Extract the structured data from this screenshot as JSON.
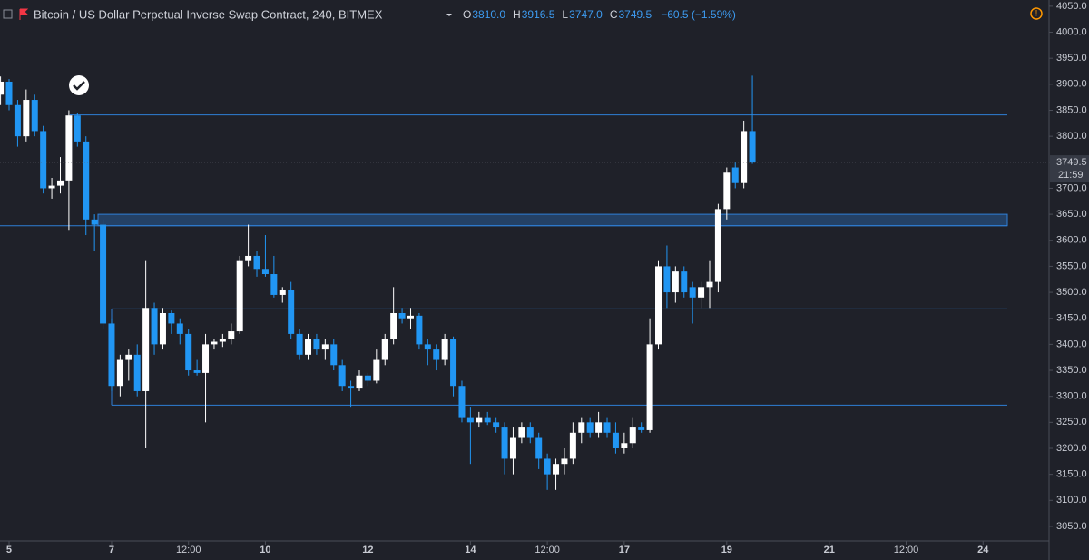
{
  "chart_data": {
    "type": "candlestick",
    "title": "Bitcoin / US Dollar Perpetual Inverse Swap Contract, 240, BITMEX",
    "ohlc": [
      {
        "label": "O",
        "value": 3810.0,
        "value_label": "3810.0"
      },
      {
        "label": "H",
        "value": 3916.5,
        "value_label": "3916.5"
      },
      {
        "label": "L",
        "value": 3747.0,
        "value_label": "3747.0"
      },
      {
        "label": "C",
        "value": 3749.5,
        "value_label": "3749.5"
      }
    ],
    "change": "−60.5 (−1.59%)",
    "countdown": "21:59",
    "up_color": "#ffffff",
    "down_color": "#2196f3",
    "level_color": "#2f7fd6",
    "x": [
      4.8333,
      5,
      5.1667,
      5.3333,
      5.5,
      5.6667,
      5.8333,
      6,
      6.1667,
      6.3333,
      6.5,
      6.6667,
      6.8333,
      7,
      7.1667,
      7.3333,
      7.5,
      7.6667,
      7.8333,
      8,
      8.1667,
      8.3333,
      8.5,
      8.6667,
      8.8333,
      9,
      9.1667,
      9.3333,
      9.5,
      9.6667,
      9.8333,
      10,
      10.1667,
      10.3333,
      10.5,
      10.6667,
      10.8333,
      11,
      11.1667,
      11.3333,
      11.5,
      11.6667,
      11.8333,
      12,
      12.1667,
      12.3333,
      12.5,
      12.6667,
      12.8333,
      13,
      13.1667,
      13.3333,
      13.5,
      13.6667,
      13.8333,
      14,
      14.1667,
      14.3333,
      14.5,
      14.6667,
      14.8333,
      15,
      15.1667,
      15.3333,
      15.5,
      15.6667,
      15.8333,
      16,
      16.1667,
      16.3333,
      16.5,
      16.6667,
      16.8333,
      17,
      17.1667,
      17.3333,
      17.5,
      17.6667,
      17.8333,
      18,
      18.1667,
      18.3333,
      18.5,
      18.6667,
      18.8333,
      19,
      19.1667,
      19.3333,
      19.5
    ],
    "open": [
      3880,
      3905,
      3860,
      3800,
      3870,
      3810,
      3700,
      3705,
      3715,
      3840,
      3790,
      3640,
      3630,
      3440,
      3320,
      3370,
      3380,
      3310,
      3470,
      3400,
      3460,
      3440,
      3420,
      3350,
      3345,
      3400,
      3405,
      3410,
      3425,
      3560,
      3570,
      3545,
      3535,
      3495,
      3505,
      3420,
      3380,
      3410,
      3390,
      3400,
      3360,
      3320,
      3315,
      3340,
      3330,
      3370,
      3410,
      3460,
      3450,
      3455,
      3400,
      3390,
      3370,
      3410,
      3320,
      3260,
      3250,
      3260,
      3250,
      3240,
      3180,
      3220,
      3240,
      3220,
      3180,
      3150,
      3170,
      3180,
      3230,
      3250,
      3230,
      3250,
      3230,
      3200,
      3210,
      3240,
      3235,
      3400,
      3550,
      3500,
      3540,
      3510,
      3490,
      3510,
      3520,
      3660,
      3740,
      3710,
      3810.0
    ],
    "high": [
      3915,
      3910,
      3870,
      3890,
      3880,
      3820,
      3720,
      3760,
      3850,
      3845,
      3800,
      3650,
      3640,
      3450,
      3380,
      3390,
      3400,
      3560,
      3480,
      3470,
      3465,
      3450,
      3430,
      3370,
      3420,
      3410,
      3420,
      3440,
      3570,
      3630,
      3580,
      3610,
      3570,
      3510,
      3520,
      3430,
      3420,
      3420,
      3410,
      3410,
      3370,
      3330,
      3350,
      3345,
      3390,
      3420,
      3510,
      3470,
      3470,
      3460,
      3410,
      3400,
      3420,
      3415,
      3330,
      3280,
      3270,
      3270,
      3260,
      3250,
      3240,
      3250,
      3250,
      3230,
      3190,
      3180,
      3200,
      3250,
      3260,
      3260,
      3270,
      3260,
      3250,
      3230,
      3260,
      3250,
      3450,
      3560,
      3590,
      3550,
      3550,
      3520,
      3520,
      3560,
      3670,
      3740,
      3750,
      3830,
      3916.5
    ],
    "low": [
      3860,
      3850,
      3780,
      3790,
      3800,
      3690,
      3680,
      3690,
      3620,
      3780,
      3610,
      3580,
      3430,
      3310,
      3300,
      3330,
      3300,
      3200,
      3380,
      3390,
      3420,
      3400,
      3340,
      3340,
      3250,
      3390,
      3395,
      3400,
      3420,
      3550,
      3530,
      3530,
      3490,
      3480,
      3410,
      3370,
      3370,
      3380,
      3370,
      3350,
      3310,
      3280,
      3310,
      3320,
      3325,
      3360,
      3400,
      3440,
      3430,
      3390,
      3360,
      3350,
      3360,
      3300,
      3250,
      3170,
      3240,
      3245,
      3230,
      3150,
      3150,
      3210,
      3210,
      3160,
      3120,
      3120,
      3150,
      3170,
      3210,
      3220,
      3220,
      3220,
      3190,
      3190,
      3200,
      3230,
      3230,
      3390,
      3470,
      3480,
      3490,
      3440,
      3470,
      3470,
      3500,
      3640,
      3700,
      3700,
      3747.0
    ],
    "close": [
      3905,
      3860,
      3800,
      3870,
      3810,
      3700,
      3705,
      3715,
      3840,
      3790,
      3640,
      3630,
      3440,
      3320,
      3370,
      3380,
      3310,
      3470,
      3400,
      3460,
      3440,
      3420,
      3350,
      3345,
      3400,
      3405,
      3410,
      3425,
      3560,
      3570,
      3545,
      3535,
      3495,
      3505,
      3420,
      3380,
      3410,
      3390,
      3400,
      3360,
      3320,
      3315,
      3340,
      3330,
      3370,
      3410,
      3460,
      3450,
      3455,
      3400,
      3390,
      3370,
      3410,
      3320,
      3260,
      3250,
      3260,
      3250,
      3240,
      3180,
      3220,
      3240,
      3220,
      3180,
      3150,
      3170,
      3180,
      3230,
      3250,
      3230,
      3250,
      3230,
      3200,
      3210,
      3240,
      3235,
      3400,
      3550,
      3500,
      3540,
      3500,
      3490,
      3510,
      3520,
      3660,
      3730,
      3710,
      3810,
      3749.5
    ],
    "horizontal_lines": [
      3841,
      3628,
      3468,
      3283
    ],
    "zone": [
      3628,
      3650
    ],
    "xlim": [
      4.823,
      25.27
    ],
    "xticks": [
      5,
      7,
      {
        "value": 8.5,
        "label": "12:00"
      },
      10,
      12,
      14,
      {
        "value": 15.5,
        "label": "12:00"
      },
      17,
      19,
      21,
      {
        "value": 22.5,
        "label": "12:00"
      },
      24
    ],
    "ylim": [
      3022,
      4062
    ],
    "yticks": [
      {
        "value": 3050,
        "label": "3050.0"
      },
      {
        "value": 3100,
        "label": "3100.0"
      },
      {
        "value": 3150,
        "label": "3150.0"
      },
      {
        "value": 3200,
        "label": "3200.0"
      },
      {
        "value": 3250,
        "label": "3250.0"
      },
      {
        "value": 3300,
        "label": "3300.0"
      },
      {
        "value": 3350,
        "label": "3350.0"
      },
      {
        "value": 3400,
        "label": "3400.0"
      },
      {
        "value": 3450,
        "label": "3450.0"
      },
      {
        "value": 3500,
        "label": "3500.0"
      },
      {
        "value": 3550,
        "label": "3550.0"
      },
      {
        "value": 3600,
        "label": "3600.0"
      },
      {
        "value": 3650,
        "label": "3650.0"
      },
      {
        "value": 3700,
        "label": "3700.0"
      },
      {
        "value": 3750,
        "label": "3750.0"
      },
      {
        "value": 3800,
        "label": "3800.0"
      },
      {
        "value": 3850,
        "label": "3850.0"
      },
      {
        "value": 3900,
        "label": "3900.0"
      },
      {
        "value": 3950,
        "label": "3950.0"
      },
      {
        "value": 4000,
        "label": "4000.0"
      },
      {
        "value": 4050,
        "label": "4050.0"
      }
    ],
    "grid": false
  }
}
